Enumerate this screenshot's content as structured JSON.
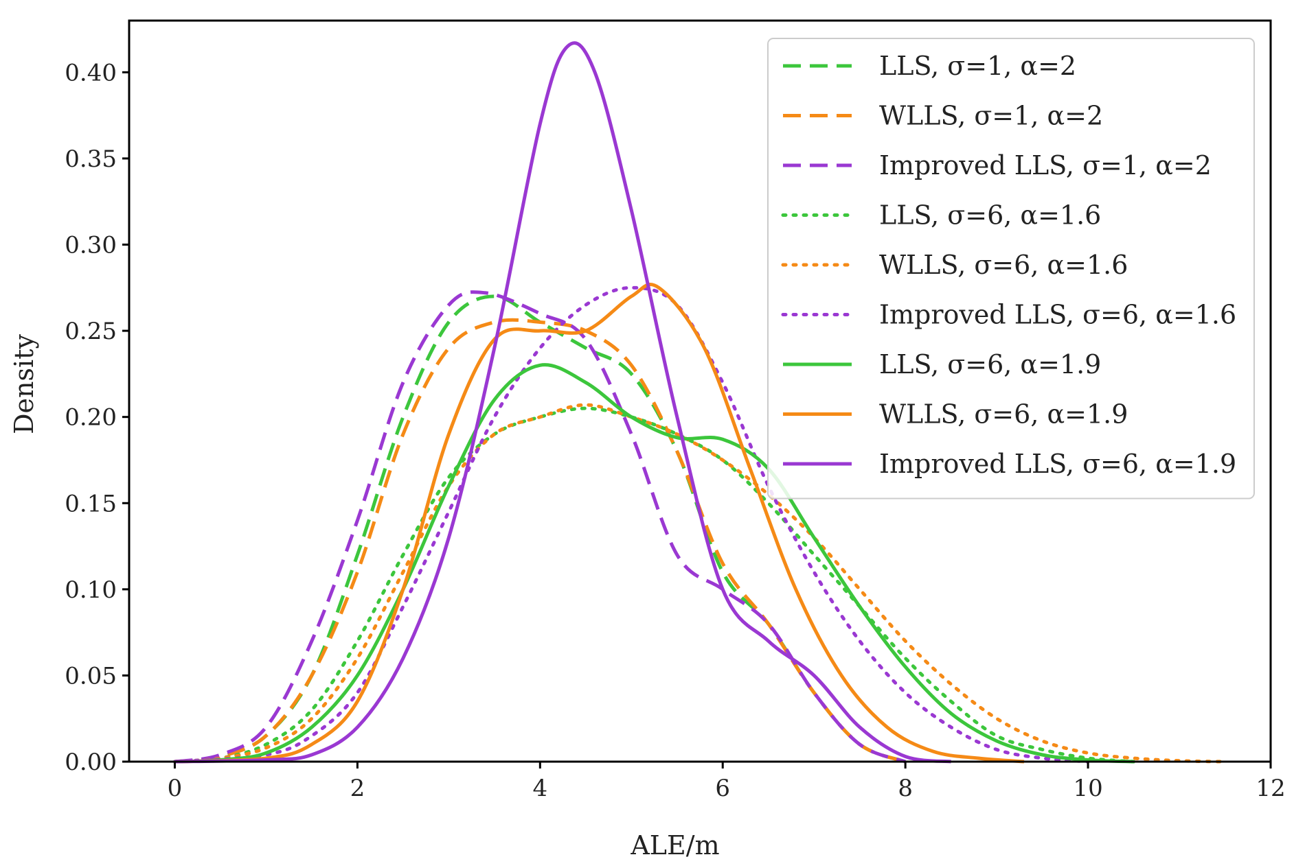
{
  "chart_data": {
    "type": "line",
    "title": "",
    "xlabel": "ALE/m",
    "ylabel": "Density",
    "xlim": [
      -0.5,
      12
    ],
    "ylim": [
      0,
      0.43
    ],
    "xticks": [
      0,
      2,
      4,
      6,
      8,
      10,
      12
    ],
    "xtick_labels": [
      "0",
      "2",
      "4",
      "6",
      "8",
      "10",
      "12"
    ],
    "yticks": [
      0.0,
      0.05,
      0.1,
      0.15,
      0.2,
      0.25,
      0.3,
      0.35,
      0.4
    ],
    "ytick_labels": [
      "0.00",
      "0.05",
      "0.10",
      "0.15",
      "0.20",
      "0.25",
      "0.30",
      "0.35",
      "0.40"
    ],
    "grid": false,
    "legend_position": "top-right",
    "colors": {
      "green": "#3cc63c",
      "orange": "#f58a16",
      "purple": "#9a38d2"
    },
    "series": [
      {
        "name": "LLS, σ=1, α=2",
        "color": "#3cc63c",
        "style": "dashed",
        "points": [
          [
            0,
            0
          ],
          [
            0.5,
            0.003
          ],
          [
            1,
            0.015
          ],
          [
            1.5,
            0.05
          ],
          [
            2,
            0.12
          ],
          [
            2.5,
            0.2
          ],
          [
            3,
            0.255
          ],
          [
            3.5,
            0.27
          ],
          [
            4,
            0.255
          ],
          [
            4.5,
            0.24
          ],
          [
            5,
            0.225
          ],
          [
            5.5,
            0.18
          ],
          [
            6,
            0.11
          ],
          [
            6.5,
            0.08
          ],
          [
            7,
            0.04
          ],
          [
            7.5,
            0.01
          ],
          [
            8,
            0
          ]
        ]
      },
      {
        "name": "WLLS, σ=1, α=2",
        "color": "#f58a16",
        "style": "dashed",
        "points": [
          [
            0,
            0
          ],
          [
            0.5,
            0.003
          ],
          [
            1,
            0.015
          ],
          [
            1.5,
            0.05
          ],
          [
            2,
            0.11
          ],
          [
            2.5,
            0.19
          ],
          [
            3,
            0.24
          ],
          [
            3.5,
            0.255
          ],
          [
            4,
            0.255
          ],
          [
            4.5,
            0.25
          ],
          [
            5,
            0.23
          ],
          [
            5.5,
            0.18
          ],
          [
            6,
            0.115
          ],
          [
            6.5,
            0.08
          ],
          [
            7,
            0.04
          ],
          [
            7.5,
            0.01
          ],
          [
            8,
            0
          ]
        ]
      },
      {
        "name": "Improved LLS, σ=1, α=2",
        "color": "#9a38d2",
        "style": "dashed",
        "points": [
          [
            0,
            0
          ],
          [
            0.5,
            0.004
          ],
          [
            1,
            0.02
          ],
          [
            1.5,
            0.07
          ],
          [
            2,
            0.14
          ],
          [
            2.5,
            0.22
          ],
          [
            3,
            0.265
          ],
          [
            3.4,
            0.272
          ],
          [
            4,
            0.26
          ],
          [
            4.5,
            0.245
          ],
          [
            5,
            0.19
          ],
          [
            5.5,
            0.12
          ],
          [
            6,
            0.1
          ],
          [
            6.5,
            0.08
          ],
          [
            7,
            0.04
          ],
          [
            7.5,
            0.01
          ],
          [
            8,
            0
          ]
        ]
      },
      {
        "name": "LLS, σ=6, α=1.6",
        "color": "#3cc63c",
        "style": "dotted",
        "points": [
          [
            0,
            0
          ],
          [
            0.5,
            0.002
          ],
          [
            1,
            0.01
          ],
          [
            1.5,
            0.03
          ],
          [
            2,
            0.07
          ],
          [
            2.5,
            0.12
          ],
          [
            3,
            0.165
          ],
          [
            3.5,
            0.19
          ],
          [
            4,
            0.2
          ],
          [
            4.5,
            0.205
          ],
          [
            5,
            0.2
          ],
          [
            5.5,
            0.19
          ],
          [
            6,
            0.175
          ],
          [
            6.5,
            0.15
          ],
          [
            7,
            0.12
          ],
          [
            7.5,
            0.09
          ],
          [
            8,
            0.06
          ],
          [
            8.5,
            0.035
          ],
          [
            9,
            0.015
          ],
          [
            9.5,
            0.007
          ],
          [
            10,
            0.002
          ],
          [
            10.5,
            0
          ]
        ]
      },
      {
        "name": "WLLS, σ=6, α=1.6",
        "color": "#f58a16",
        "style": "dotted",
        "points": [
          [
            0,
            0
          ],
          [
            0.5,
            0.002
          ],
          [
            1,
            0.008
          ],
          [
            1.5,
            0.025
          ],
          [
            2,
            0.06
          ],
          [
            2.5,
            0.11
          ],
          [
            3,
            0.16
          ],
          [
            3.5,
            0.19
          ],
          [
            4,
            0.2
          ],
          [
            4.5,
            0.207
          ],
          [
            5,
            0.2
          ],
          [
            5.5,
            0.19
          ],
          [
            6,
            0.175
          ],
          [
            6.5,
            0.155
          ],
          [
            7,
            0.13
          ],
          [
            7.5,
            0.1
          ],
          [
            8,
            0.07
          ],
          [
            8.5,
            0.045
          ],
          [
            9,
            0.025
          ],
          [
            9.5,
            0.012
          ],
          [
            10,
            0.005
          ],
          [
            10.5,
            0.002
          ],
          [
            11,
            0.0005
          ],
          [
            11.5,
            0
          ]
        ]
      },
      {
        "name": "Improved LLS, σ=6, α=1.6",
        "color": "#9a38d2",
        "style": "dotted",
        "points": [
          [
            0,
            0
          ],
          [
            1,
            0.004
          ],
          [
            1.5,
            0.015
          ],
          [
            2,
            0.04
          ],
          [
            2.5,
            0.09
          ],
          [
            3,
            0.145
          ],
          [
            3.5,
            0.2
          ],
          [
            4,
            0.24
          ],
          [
            4.5,
            0.265
          ],
          [
            5,
            0.275
          ],
          [
            5.5,
            0.265
          ],
          [
            6,
            0.22
          ],
          [
            6.5,
            0.16
          ],
          [
            7,
            0.11
          ],
          [
            7.5,
            0.07
          ],
          [
            8,
            0.04
          ],
          [
            8.5,
            0.02
          ],
          [
            9,
            0.007
          ],
          [
            9.5,
            0.002
          ],
          [
            10,
            0
          ]
        ]
      },
      {
        "name": "LLS, σ=6, α=1.9",
        "color": "#3cc63c",
        "style": "solid",
        "points": [
          [
            0,
            0
          ],
          [
            0.5,
            0.001
          ],
          [
            1,
            0.005
          ],
          [
            1.5,
            0.02
          ],
          [
            2,
            0.05
          ],
          [
            2.5,
            0.1
          ],
          [
            3,
            0.16
          ],
          [
            3.5,
            0.21
          ],
          [
            4,
            0.23
          ],
          [
            4.5,
            0.22
          ],
          [
            5,
            0.2
          ],
          [
            5.5,
            0.188
          ],
          [
            6,
            0.187
          ],
          [
            6.5,
            0.17
          ],
          [
            7,
            0.13
          ],
          [
            7.5,
            0.09
          ],
          [
            8,
            0.055
          ],
          [
            8.5,
            0.028
          ],
          [
            9,
            0.012
          ],
          [
            9.5,
            0.004
          ],
          [
            10,
            0.001
          ],
          [
            10.5,
            0
          ]
        ]
      },
      {
        "name": "WLLS, σ=6, α=1.9",
        "color": "#f58a16",
        "style": "solid",
        "points": [
          [
            0,
            0
          ],
          [
            1,
            0.002
          ],
          [
            1.5,
            0.01
          ],
          [
            2,
            0.035
          ],
          [
            2.5,
            0.1
          ],
          [
            3,
            0.19
          ],
          [
            3.5,
            0.245
          ],
          [
            4,
            0.25
          ],
          [
            4.5,
            0.25
          ],
          [
            5,
            0.27
          ],
          [
            5.3,
            0.275
          ],
          [
            5.8,
            0.24
          ],
          [
            6.3,
            0.17
          ],
          [
            6.8,
            0.1
          ],
          [
            7.3,
            0.05
          ],
          [
            7.8,
            0.02
          ],
          [
            8.3,
            0.006
          ],
          [
            8.8,
            0.002
          ],
          [
            9.3,
            0
          ]
        ]
      },
      {
        "name": "Improved LLS, σ=6, α=1.9",
        "color": "#9a38d2",
        "style": "solid",
        "points": [
          [
            0,
            0
          ],
          [
            1,
            0.001
          ],
          [
            1.5,
            0.004
          ],
          [
            2,
            0.02
          ],
          [
            2.5,
            0.06
          ],
          [
            3,
            0.13
          ],
          [
            3.5,
            0.24
          ],
          [
            4,
            0.37
          ],
          [
            4.3,
            0.415
          ],
          [
            4.6,
            0.4
          ],
          [
            5,
            0.32
          ],
          [
            5.5,
            0.2
          ],
          [
            6,
            0.1
          ],
          [
            6.5,
            0.07
          ],
          [
            7,
            0.05
          ],
          [
            7.5,
            0.02
          ],
          [
            8,
            0.003
          ],
          [
            8.5,
            0
          ]
        ]
      }
    ]
  }
}
